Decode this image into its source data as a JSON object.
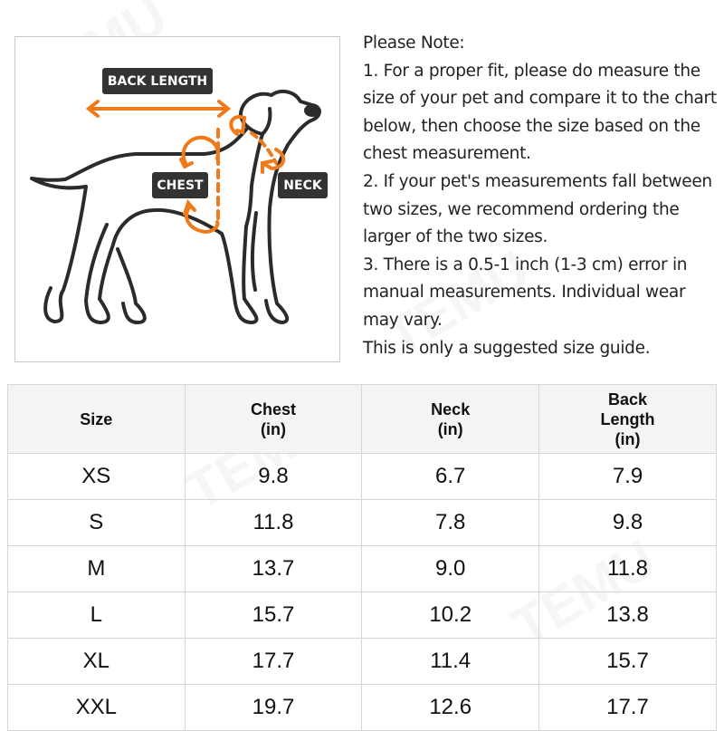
{
  "watermark": "TEMU",
  "figure": {
    "labels": {
      "back_length": "BACK LENGTH",
      "chest": "CHEST",
      "neck": "NECK"
    },
    "colors": {
      "accent": "#f07a1a",
      "outline": "#2b2b2b",
      "label_bg": "#333333"
    }
  },
  "notes": {
    "lines": [
      "Please Note:",
      "1. For a proper fit, please do measure the",
      "size of your pet and compare it to the chart",
      "below, then choose the size based on the",
      "chest measurement.",
      "2. If your pet's measurements fall between",
      "two sizes, we recommend ordering the",
      "larger of the two sizes.",
      "3. There is a 0.5-1 inch (1-3 cm) error in",
      "manual measurements. Individual wear",
      "may vary.",
      "This is only a suggested size guide."
    ]
  },
  "table": {
    "headers": [
      [
        "Size"
      ],
      [
        "Chest",
        "(in)"
      ],
      [
        "Neck",
        "(in)"
      ],
      [
        "Back",
        "Length",
        "(in)"
      ]
    ],
    "rows": [
      [
        "XS",
        "9.8",
        "6.7",
        "7.9"
      ],
      [
        "S",
        "11.8",
        "7.8",
        "9.8"
      ],
      [
        "M",
        "13.7",
        "9.0",
        "11.8"
      ],
      [
        "L",
        "15.7",
        "10.2",
        "13.8"
      ],
      [
        "XL",
        "17.7",
        "11.4",
        "15.7"
      ],
      [
        "XXL",
        "19.7",
        "12.6",
        "17.7"
      ]
    ]
  }
}
